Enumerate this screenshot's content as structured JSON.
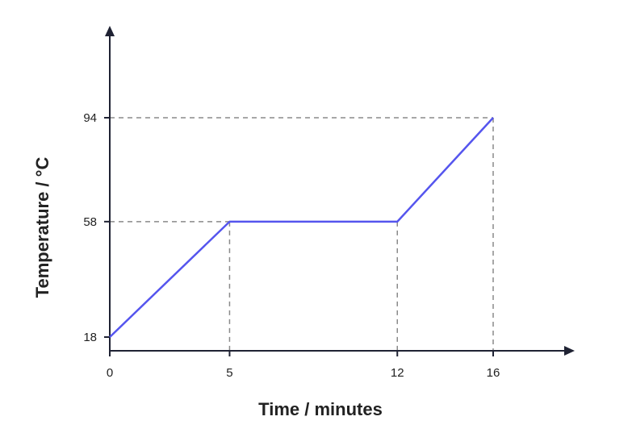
{
  "chart_data": {
    "type": "line",
    "title": "",
    "xlabel": "Time / minutes",
    "ylabel": "Temperature / °C",
    "x_ticks": [
      0,
      5,
      12,
      16
    ],
    "y_ticks": [
      18,
      58,
      94
    ],
    "series": [
      {
        "points": [
          [
            0,
            18
          ],
          [
            5,
            58
          ],
          [
            12,
            58
          ],
          [
            16,
            94
          ]
        ]
      }
    ],
    "guide_lines": "dashed",
    "grid": false,
    "colors": {
      "line": "#5555ee",
      "axis": "#1f2233",
      "guide": "#8a8a8a",
      "text": "#222222"
    }
  }
}
